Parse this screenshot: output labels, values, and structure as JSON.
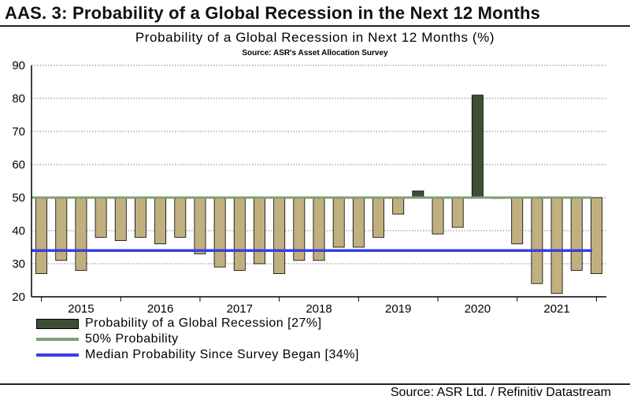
{
  "header": {
    "title": "AAS. 3: Probability of a Global Recession in the Next 12 Months"
  },
  "footer": {
    "source": "Source: ASR Ltd.  / Refinitiv Datastream"
  },
  "colors": {
    "bar_fill": "#c1b07f",
    "bar_highlight_fill": "#3c4f36",
    "bar_stroke": "#000000",
    "line_50": "#7f9e74",
    "line_median": "#3a3ee0",
    "grid": "#000000"
  },
  "chart_data": {
    "type": "bar",
    "title": "Probability of a Global Recession in Next 12 Months (%)",
    "subtitle": "Source: ASR's Asset Allocation Survey",
    "ylim": [
      20,
      90
    ],
    "yticks": [
      20,
      30,
      40,
      50,
      60,
      70,
      80,
      90
    ],
    "grid": true,
    "baseline": 50,
    "x_labels": [
      "2015",
      "2016",
      "2017",
      "2018",
      "2019",
      "2020",
      "2021"
    ],
    "x_label_positions": [
      2.5,
      6.5,
      10.5,
      14.5,
      18.5,
      22.5,
      26.5
    ],
    "values": [
      27,
      31,
      28,
      38,
      37,
      38,
      36,
      38,
      33,
      29,
      28,
      30,
      27,
      31,
      31,
      35,
      35,
      38,
      45,
      52,
      39,
      41,
      81,
      50,
      36,
      24,
      21,
      28,
      27
    ],
    "highlight_indices": [
      19,
      22
    ],
    "series": [
      {
        "name": "Probability of a Global Recession [27%]",
        "kind": "bar"
      },
      {
        "name": "50% Probability",
        "kind": "line",
        "value": 50
      },
      {
        "name": "Median Probability Since Survey Began [34%]",
        "kind": "line",
        "value": 34
      }
    ],
    "legend_position": "bottom-left"
  }
}
